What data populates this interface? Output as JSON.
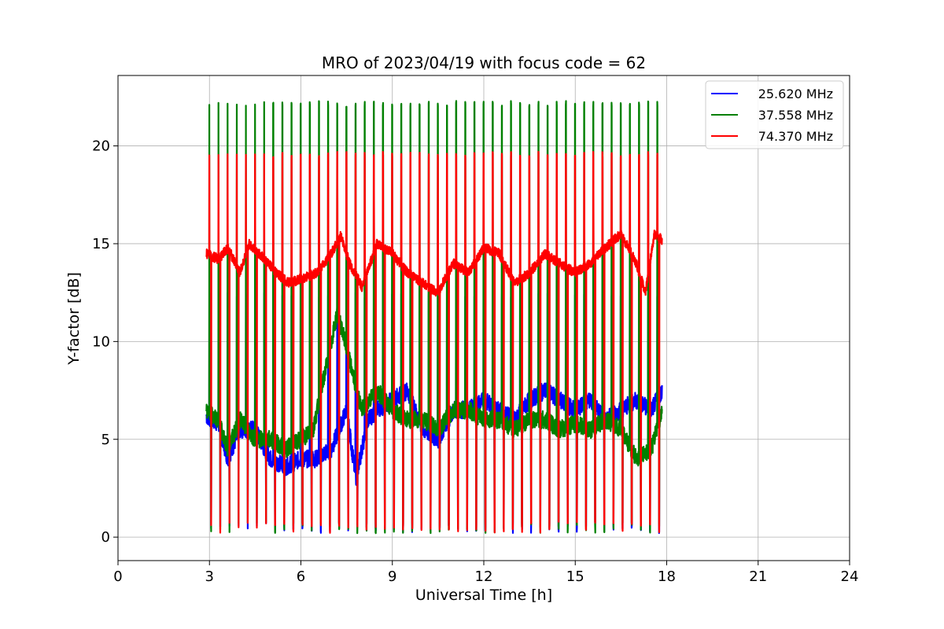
{
  "chart_data": {
    "type": "line",
    "title": "MRO of 2023/04/19 with focus code = 62",
    "xlabel": "Universal Time [h]",
    "ylabel": "Y-factor [dB]",
    "xlim": [
      0,
      24
    ],
    "ylim": [
      -1.2,
      23.6
    ],
    "xticks": [
      0,
      3,
      6,
      9,
      12,
      15,
      18,
      21,
      24
    ],
    "yticks": [
      0,
      5,
      10,
      15,
      20
    ],
    "grid": true,
    "legend_position": "top-right",
    "t_start": 2.9,
    "t_end": 17.85,
    "spike_period_h": 0.3,
    "series": [
      {
        "name": "25.620 MHz",
        "color": "#0000ff",
        "spike_top": 12.5,
        "spike_bottom": 0.2,
        "x": [
          2.9,
          3.3,
          3.6,
          4.0,
          4.5,
          5.0,
          5.5,
          6.0,
          6.5,
          7.0,
          7.5,
          7.8,
          8.2,
          8.5,
          9.0,
          9.5,
          10.0,
          10.5,
          11.0,
          11.5,
          12.0,
          12.5,
          13.0,
          13.5,
          14.0,
          14.5,
          15.0,
          15.5,
          16.0,
          16.5,
          17.0,
          17.5,
          17.85
        ],
        "y": [
          6.2,
          5.8,
          4.0,
          5.5,
          5.5,
          4.0,
          3.6,
          4.0,
          4.0,
          4.5,
          6.5,
          3.0,
          6.0,
          6.5,
          7.0,
          7.5,
          5.5,
          5.0,
          6.5,
          6.5,
          7.0,
          6.5,
          6.0,
          7.0,
          7.5,
          7.0,
          6.5,
          7.0,
          6.0,
          6.5,
          7.0,
          6.5,
          7.5
        ]
      },
      {
        "name": "37.558 MHz",
        "color": "#008000",
        "spike_top": 22.3,
        "spike_bottom": 0.2,
        "x": [
          2.9,
          3.3,
          3.6,
          4.0,
          4.5,
          5.0,
          5.5,
          6.0,
          6.4,
          6.8,
          7.2,
          7.6,
          8.0,
          8.5,
          9.0,
          9.5,
          10.0,
          10.5,
          11.0,
          11.5,
          12.0,
          12.5,
          13.0,
          13.5,
          14.0,
          14.5,
          15.0,
          15.5,
          16.0,
          16.5,
          17.0,
          17.5,
          17.85
        ],
        "y": [
          6.5,
          6.0,
          4.5,
          6.0,
          5.0,
          5.0,
          4.5,
          5.0,
          5.5,
          8.5,
          11.5,
          9.0,
          6.5,
          7.5,
          6.5,
          6.0,
          6.0,
          5.5,
          6.5,
          6.5,
          6.0,
          6.0,
          5.5,
          6.0,
          6.0,
          5.5,
          5.8,
          5.5,
          6.0,
          5.5,
          4.0,
          4.5,
          6.5
        ]
      },
      {
        "name": "74.370 MHz",
        "color": "#ff0000",
        "spike_top": 19.7,
        "spike_bottom": 0.2,
        "x": [
          2.9,
          3.3,
          3.6,
          4.0,
          4.3,
          4.8,
          5.2,
          5.6,
          6.0,
          6.5,
          7.0,
          7.3,
          7.6,
          8.0,
          8.5,
          9.0,
          9.5,
          10.0,
          10.5,
          11.0,
          11.5,
          12.0,
          12.5,
          13.0,
          13.5,
          14.0,
          14.5,
          15.0,
          15.5,
          16.0,
          16.5,
          17.0,
          17.3,
          17.6,
          17.85
        ],
        "y": [
          14.5,
          14.2,
          14.8,
          13.5,
          15.0,
          14.2,
          13.5,
          13.0,
          13.2,
          13.5,
          14.5,
          15.4,
          14.0,
          12.8,
          15.0,
          14.5,
          13.5,
          13.0,
          12.5,
          14.0,
          13.5,
          14.8,
          14.5,
          13.0,
          13.5,
          14.5,
          14.0,
          13.5,
          14.0,
          14.8,
          15.5,
          14.0,
          12.5,
          15.5,
          15.2
        ]
      }
    ]
  }
}
